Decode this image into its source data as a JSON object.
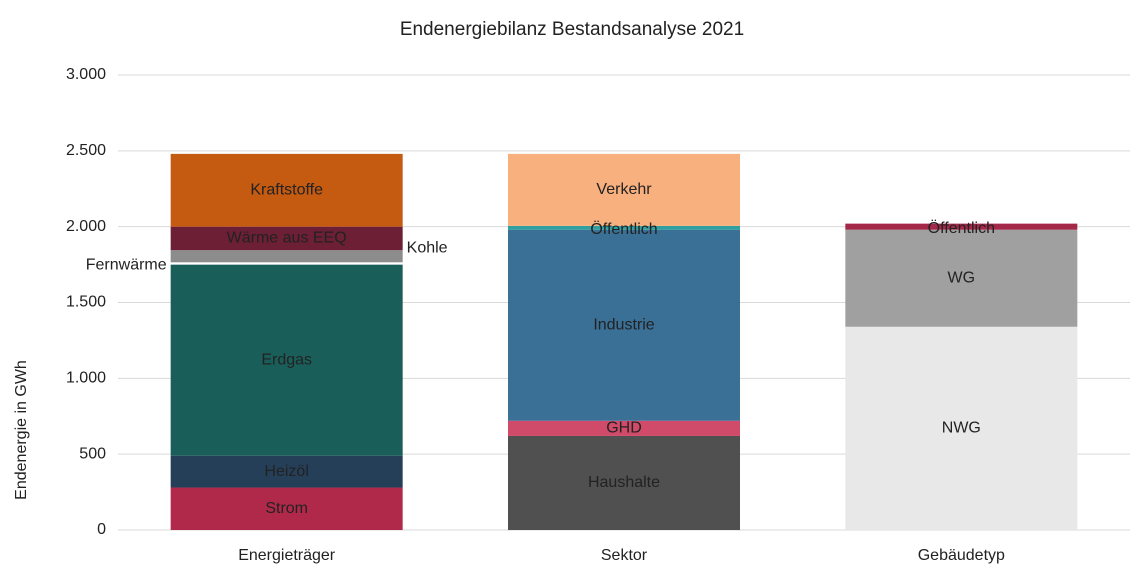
{
  "chart_data": {
    "type": "stacked_bar",
    "title": "Endenergiebilanz Bestandsanalyse 2021",
    "y_label": "Endenergie in GWh",
    "categories": [
      "Energieträger",
      "Sektor",
      "Gebäudetyp"
    ],
    "series": [
      {
        "name": "Strom",
        "color": "#b0294b",
        "values": [
          280,
          null,
          null
        ]
      },
      {
        "name": "Heizöl",
        "color": "#253f58",
        "values": [
          210,
          null,
          null
        ]
      },
      {
        "name": "Erdgas",
        "color": "#1a5e5a",
        "values": [
          1260,
          null,
          null
        ]
      },
      {
        "name": "Fernwärme",
        "color": "#ffffff",
        "values": [
          15,
          null,
          null
        ]
      },
      {
        "name": "Kohle",
        "color": "#8c8c8c",
        "values": [
          80,
          null,
          null
        ]
      },
      {
        "name": "Wärme aus EEQ",
        "color": "#6c1f35",
        "values": [
          155,
          null,
          null
        ]
      },
      {
        "name": "Kraftstoffe",
        "color": "#c55a11",
        "values": [
          480,
          null,
          null
        ]
      },
      {
        "name": "Haushalte",
        "color": "#505050",
        "values": [
          null,
          620,
          null
        ]
      },
      {
        "name": "GHD",
        "color": "#d04a6a",
        "values": [
          null,
          100,
          null
        ]
      },
      {
        "name": "Industrie",
        "color": "#3a6f96",
        "values": [
          null,
          1260,
          null
        ]
      },
      {
        "name": "Öffentlich",
        "color": "#2f9fa0",
        "values": [
          null,
          25,
          null
        ]
      },
      {
        "name": "Verkehr",
        "color": "#f8b07e",
        "values": [
          null,
          475,
          null
        ]
      },
      {
        "name": "NWG",
        "color": "#e8e8e8",
        "values": [
          null,
          null,
          1340
        ]
      },
      {
        "name": "WG",
        "color": "#a0a0a0",
        "values": [
          null,
          null,
          640
        ]
      },
      {
        "name": "Öffentlich",
        "color": "#a3284a",
        "values": [
          null,
          null,
          40
        ]
      }
    ],
    "ylim": [
      0,
      3000
    ],
    "yticks": [
      0,
      500,
      {
        "value": 1000,
        "label": "1.000"
      },
      {
        "value": 1500,
        "label": "1.500"
      },
      {
        "value": 2000,
        "label": "2.000"
      },
      {
        "value": 2500,
        "label": "2.500"
      },
      {
        "value": 3000,
        "label": "3.000"
      }
    ],
    "grid": true
  }
}
